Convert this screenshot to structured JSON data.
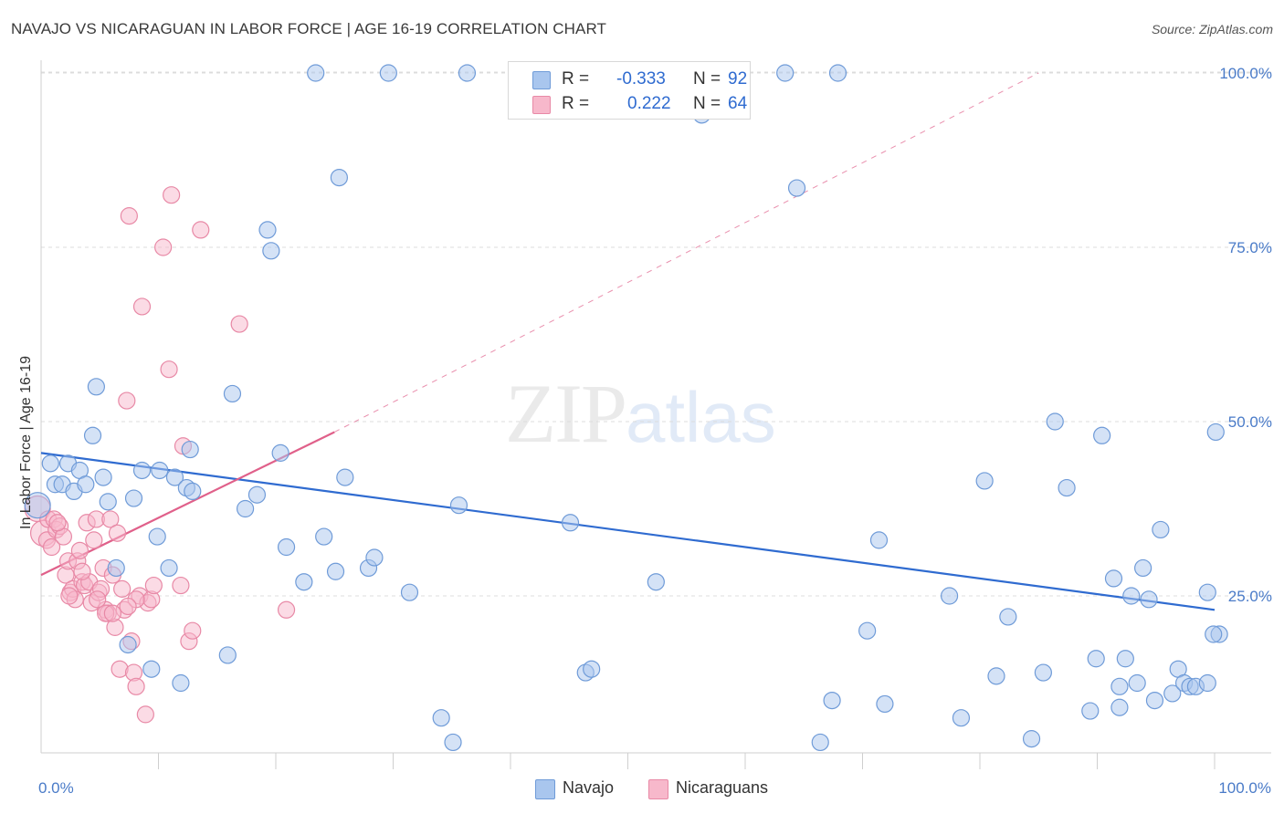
{
  "title": "NAVAJO VS NICARAGUAN IN LABOR FORCE | AGE 16-19 CORRELATION CHART",
  "source": "Source: ZipAtlas.com",
  "watermark": {
    "zip": "ZIP",
    "atlas": "atlas"
  },
  "legend_top": {
    "rows": [
      {
        "r_label": "R =",
        "r_value": "-0.333",
        "n_label": "N =",
        "n_value": "92"
      },
      {
        "r_label": "R =",
        "r_value": "0.222",
        "n_label": "N =",
        "n_value": "64"
      }
    ]
  },
  "colors": {
    "navajo_fill": "#a9c6ee",
    "navajo_stroke": "#6f9bd8",
    "navajo_line": "#2f6bd0",
    "nic_fill": "#f7b8cb",
    "nic_stroke": "#e889a6",
    "nic_line": "#e0608a",
    "grid": "#dcdcdc",
    "tick": "#4a7bc8"
  },
  "chart_data": {
    "type": "scatter",
    "title": "NAVAJO VS NICARAGUAN IN LABOR FORCE | AGE 16-19 CORRELATION CHART",
    "xlabel": "",
    "ylabel": "In Labor Force | Age 16-19",
    "xlim": [
      0,
      100
    ],
    "ylim": [
      0,
      102
    ],
    "x_tick_labels": [
      "0.0%",
      "100.0%"
    ],
    "y_ticks": [
      25,
      50,
      75,
      100
    ],
    "y_tick_labels": [
      "25.0%",
      "50.0%",
      "75.0%",
      "100.0%"
    ],
    "legend": [
      "Navajo",
      "Nicaraguans"
    ],
    "series": [
      {
        "name": "Navajo",
        "points": [
          [
            -0.3,
            38
          ],
          [
            0.8,
            44
          ],
          [
            1.2,
            41
          ],
          [
            1.8,
            41
          ],
          [
            2.3,
            44
          ],
          [
            2.8,
            40
          ],
          [
            3.3,
            43
          ],
          [
            3.8,
            41
          ],
          [
            4.4,
            48
          ],
          [
            4.7,
            55
          ],
          [
            5.3,
            42
          ],
          [
            5.7,
            38.5
          ],
          [
            6.4,
            29
          ],
          [
            7.4,
            18
          ],
          [
            7.9,
            39
          ],
          [
            8.6,
            43
          ],
          [
            9.4,
            14.5
          ],
          [
            9.9,
            33.5
          ],
          [
            10.1,
            43
          ],
          [
            10.9,
            29
          ],
          [
            11.4,
            42
          ],
          [
            11.9,
            12.5
          ],
          [
            12.4,
            40.5
          ],
          [
            12.9,
            40
          ],
          [
            12.7,
            46
          ],
          [
            15.9,
            16.5
          ],
          [
            16.3,
            54
          ],
          [
            17.4,
            37.5
          ],
          [
            18.4,
            39.5
          ],
          [
            19.3,
            77.5
          ],
          [
            19.6,
            74.5
          ],
          [
            20.4,
            45.5
          ],
          [
            20.9,
            32
          ],
          [
            22.4,
            27
          ],
          [
            23.4,
            100
          ],
          [
            24.1,
            33.5
          ],
          [
            25.1,
            28.5
          ],
          [
            25.4,
            85
          ],
          [
            25.9,
            42
          ],
          [
            27.9,
            29
          ],
          [
            28.4,
            30.5
          ],
          [
            29.6,
            100
          ],
          [
            31.4,
            25.5
          ],
          [
            34.1,
            7.5
          ],
          [
            35.1,
            4
          ],
          [
            35.6,
            38
          ],
          [
            36.3,
            100
          ],
          [
            45.1,
            35.5
          ],
          [
            46.4,
            14
          ],
          [
            46.9,
            14.5
          ],
          [
            52.4,
            27
          ],
          [
            56.3,
            94
          ],
          [
            63.4,
            100
          ],
          [
            64.4,
            83.5
          ],
          [
            66.4,
            4
          ],
          [
            67.4,
            10
          ],
          [
            67.9,
            100
          ],
          [
            70.4,
            20
          ],
          [
            71.4,
            33
          ],
          [
            71.9,
            9.5
          ],
          [
            77.4,
            25
          ],
          [
            78.4,
            7.5
          ],
          [
            80.4,
            41.5
          ],
          [
            81.4,
            13.5
          ],
          [
            82.4,
            22
          ],
          [
            84.4,
            4.5
          ],
          [
            85.4,
            14
          ],
          [
            86.4,
            50
          ],
          [
            87.4,
            40.5
          ],
          [
            89.4,
            8.5
          ],
          [
            89.9,
            16
          ],
          [
            90.4,
            48
          ],
          [
            91.4,
            27.5
          ],
          [
            91.9,
            9
          ],
          [
            92.4,
            16
          ],
          [
            92.9,
            25
          ],
          [
            93.4,
            12.5
          ],
          [
            93.9,
            29
          ],
          [
            94.4,
            24.5
          ],
          [
            94.9,
            10
          ],
          [
            95.4,
            34.5
          ],
          [
            96.4,
            11
          ],
          [
            96.9,
            14.5
          ],
          [
            97.4,
            12.5
          ],
          [
            97.9,
            12
          ],
          [
            98.4,
            12
          ],
          [
            99.4,
            25.5
          ],
          [
            99.4,
            12.5
          ],
          [
            100.4,
            19.5
          ],
          [
            100.1,
            48.5
          ],
          [
            99.9,
            19.5
          ],
          [
            91.9,
            12
          ]
        ]
      },
      {
        "name": "Nicaraguans",
        "points": [
          [
            -0.3,
            37.5
          ],
          [
            0.2,
            34
          ],
          [
            0.5,
            33
          ],
          [
            0.6,
            36
          ],
          [
            0.9,
            32
          ],
          [
            1.1,
            36
          ],
          [
            1.3,
            34.5
          ],
          [
            1.6,
            35
          ],
          [
            1.9,
            33.5
          ],
          [
            2.1,
            28
          ],
          [
            2.3,
            30
          ],
          [
            2.5,
            25.5
          ],
          [
            2.7,
            26
          ],
          [
            2.9,
            24.5
          ],
          [
            3.1,
            30
          ],
          [
            3.3,
            31.5
          ],
          [
            3.5,
            27
          ],
          [
            3.7,
            26.5
          ],
          [
            3.9,
            35.5
          ],
          [
            4.1,
            27
          ],
          [
            4.3,
            24
          ],
          [
            4.5,
            33
          ],
          [
            4.7,
            36
          ],
          [
            4.9,
            25.5
          ],
          [
            5.1,
            26
          ],
          [
            5.3,
            29
          ],
          [
            5.5,
            23
          ],
          [
            5.7,
            22.5
          ],
          [
            5.9,
            36
          ],
          [
            6.1,
            28
          ],
          [
            6.3,
            20.5
          ],
          [
            6.5,
            34
          ],
          [
            6.7,
            14.5
          ],
          [
            6.9,
            26
          ],
          [
            7.1,
            23
          ],
          [
            7.3,
            53
          ],
          [
            7.5,
            79.5
          ],
          [
            7.7,
            18.5
          ],
          [
            7.9,
            14
          ],
          [
            8.1,
            12
          ],
          [
            8.4,
            25
          ],
          [
            8.6,
            66.5
          ],
          [
            8.9,
            8
          ],
          [
            9.1,
            24
          ],
          [
            9.4,
            24.5
          ],
          [
            9.6,
            26.5
          ],
          [
            10.4,
            75
          ],
          [
            10.9,
            57.5
          ],
          [
            11.1,
            82.5
          ],
          [
            11.9,
            26.5
          ],
          [
            12.1,
            46.5
          ],
          [
            12.6,
            18.5
          ],
          [
            12.9,
            20
          ],
          [
            13.6,
            77.5
          ],
          [
            16.9,
            64
          ],
          [
            20.9,
            23
          ],
          [
            8.1,
            24.5
          ],
          [
            5.5,
            22.5
          ],
          [
            7.4,
            23.5
          ],
          [
            1.4,
            35.5
          ],
          [
            2.4,
            25
          ],
          [
            4.8,
            24.5
          ],
          [
            6.1,
            22.5
          ],
          [
            3.5,
            28.5
          ]
        ]
      }
    ],
    "trendlines": [
      {
        "series": "Navajo",
        "from": [
          0,
          45.5
        ],
        "to": [
          100,
          23
        ]
      },
      {
        "series": "Nicaraguans",
        "from": [
          0,
          28
        ],
        "to": [
          25,
          48.5
        ],
        "dashed_extension_to": [
          85,
          100
        ]
      }
    ]
  }
}
